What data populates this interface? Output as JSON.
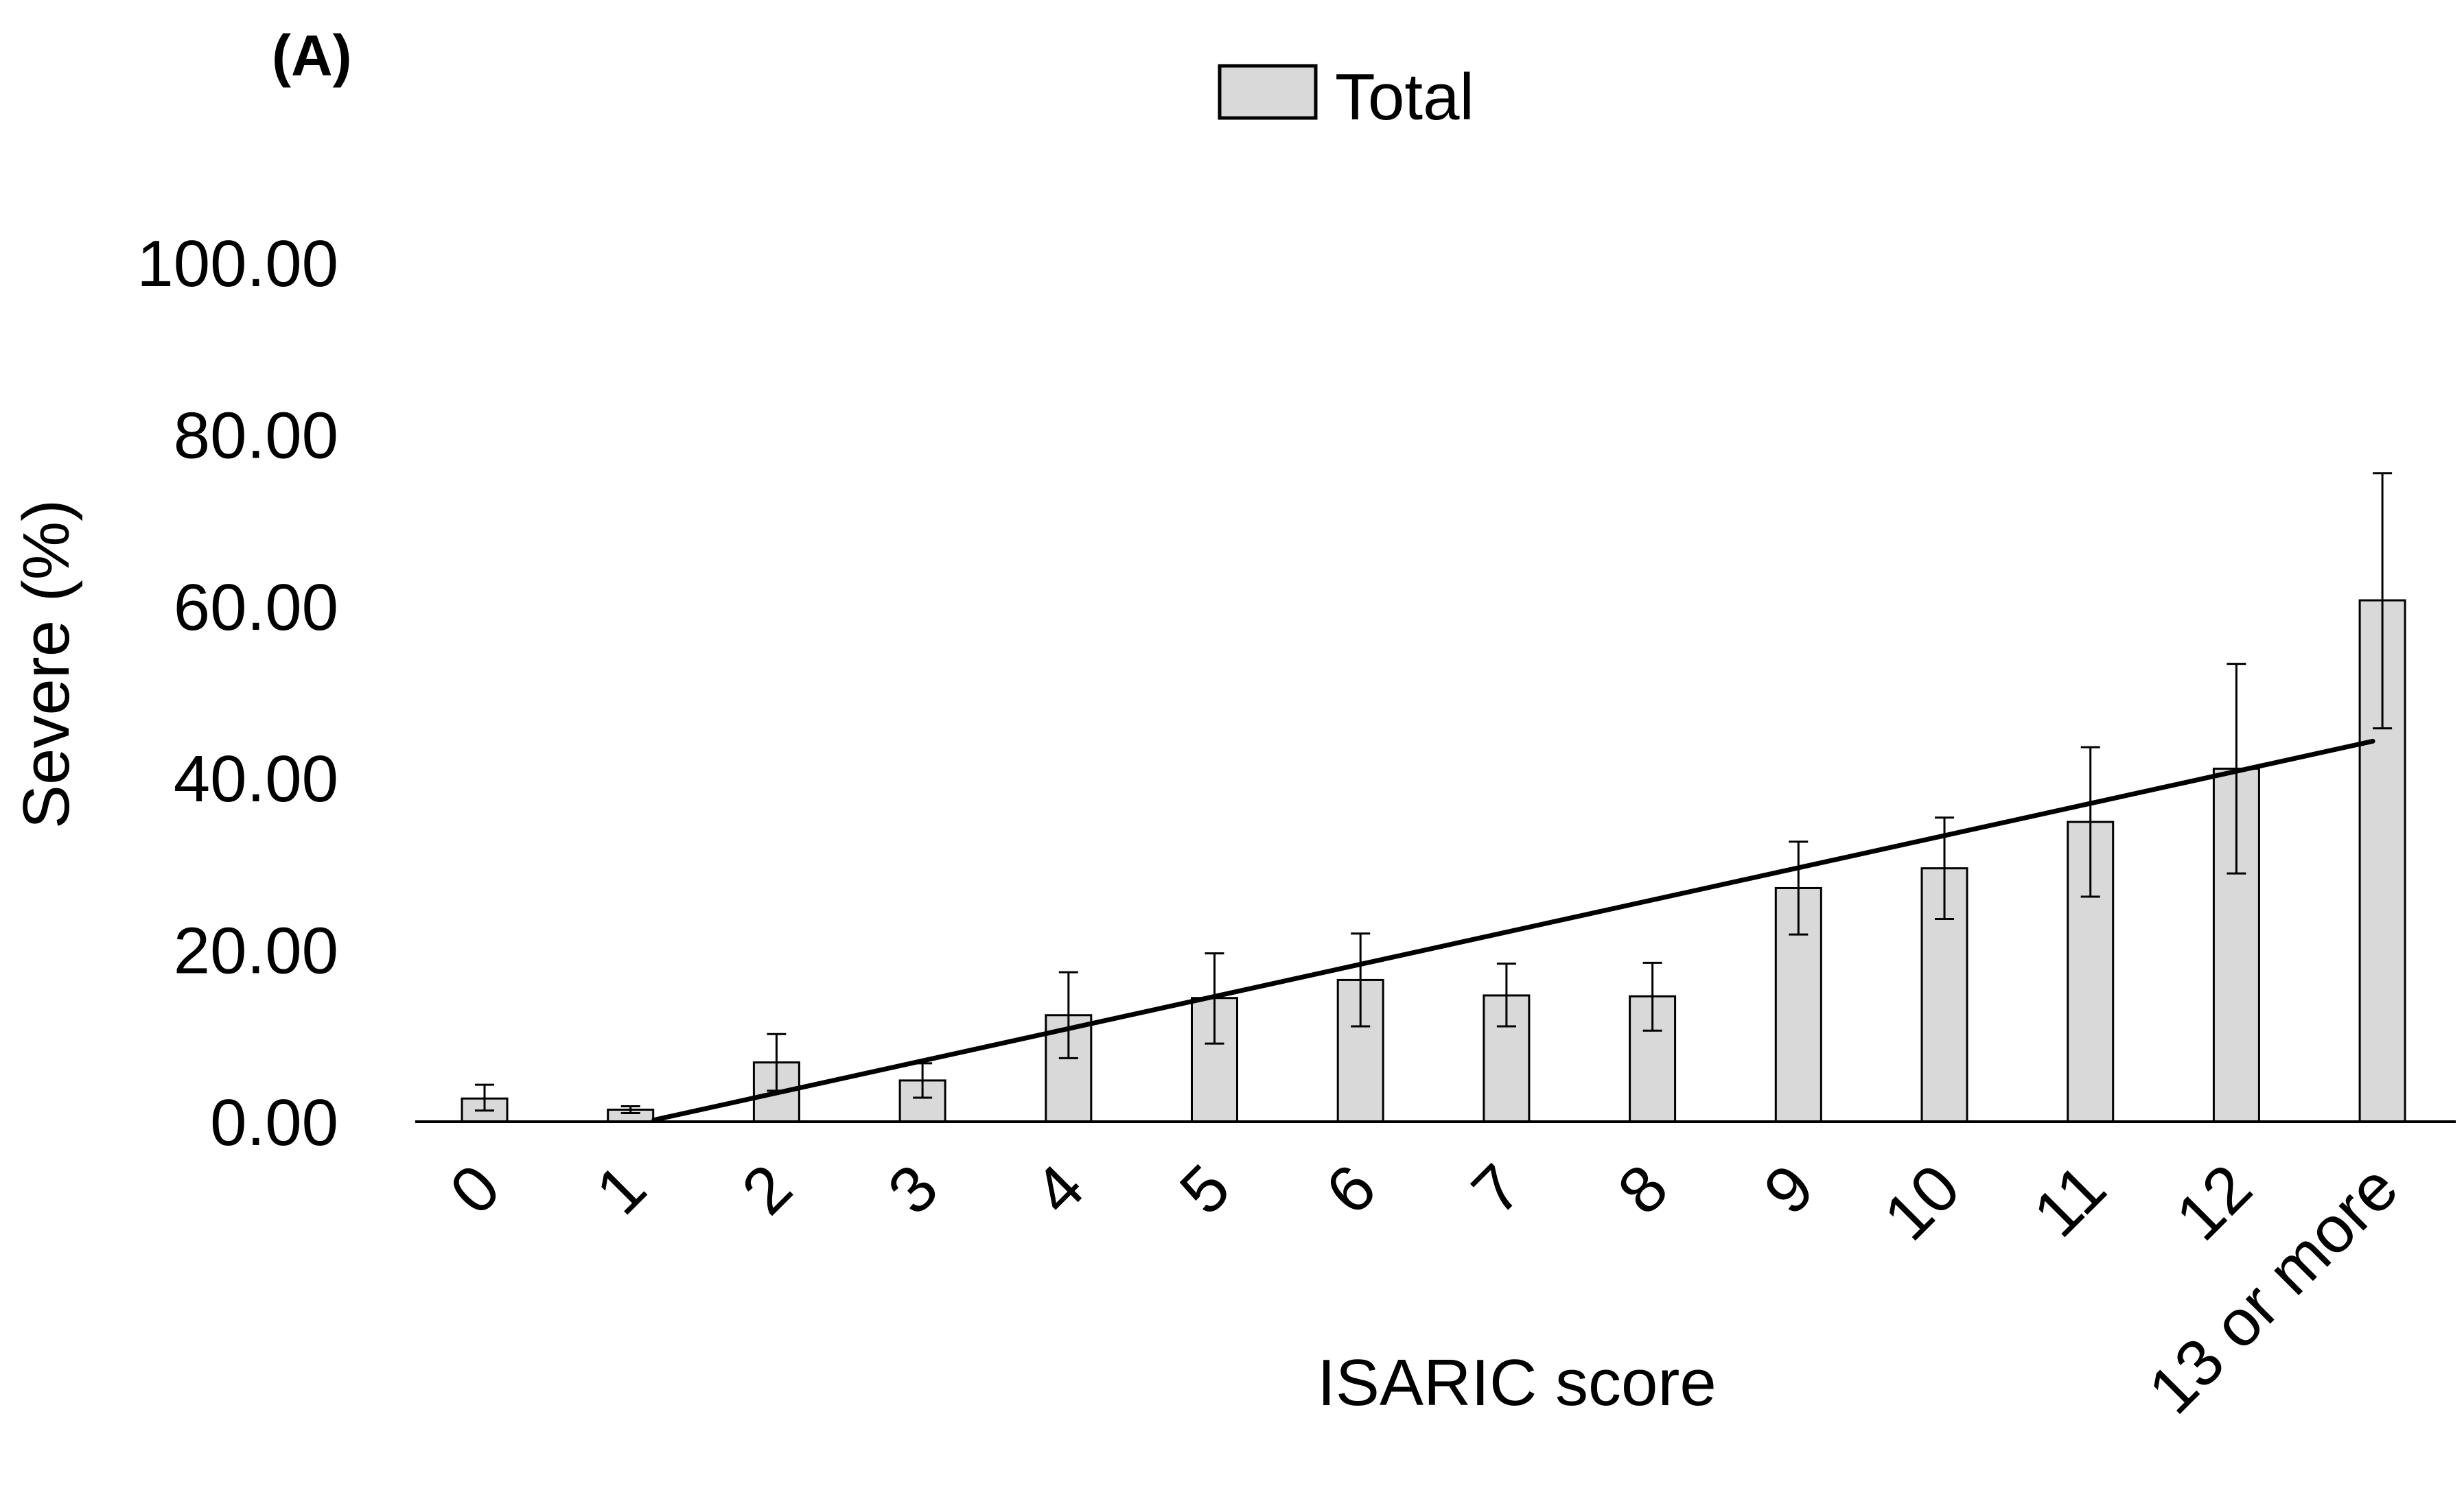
{
  "panel_label": "(A)",
  "legend": {
    "label": "Total",
    "swatch_color": "#d9d9d9",
    "placement": "top-center"
  },
  "colors": {
    "bar_fill": "#d9d9d9",
    "bar_stroke": "#000000",
    "trendline": "#000000",
    "error_bar": "#000000"
  },
  "chart_data": {
    "type": "bar",
    "title": "",
    "xlabel": "ISARIC score",
    "ylabel": "Severe (%)",
    "ylim": [
      0,
      100
    ],
    "y_ticks": [
      "0.00",
      "20.00",
      "40.00",
      "60.00",
      "80.00",
      "100.00"
    ],
    "grid": false,
    "categories": [
      "0",
      "1",
      "2",
      "3",
      "4",
      "5",
      "6",
      "7",
      "8",
      "9",
      "10",
      "11",
      "12",
      "13 or more"
    ],
    "series": [
      {
        "name": "Total",
        "values": [
          2.7,
          1.4,
          6.9,
          4.8,
          12.4,
          14.4,
          16.5,
          14.7,
          14.6,
          27.2,
          29.5,
          34.9,
          41.1,
          60.7
        ],
        "error_low": [
          1.3,
          1.0,
          3.6,
          2.8,
          7.4,
          9.1,
          11.1,
          11.1,
          10.6,
          21.8,
          23.6,
          26.2,
          28.9,
          45.8
        ],
        "error_high": [
          4.3,
          1.8,
          10.2,
          6.8,
          17.4,
          19.6,
          21.9,
          18.4,
          18.5,
          32.6,
          35.4,
          43.6,
          53.3,
          75.5
        ]
      }
    ],
    "trendline": {
      "type": "linear",
      "from_category": "1",
      "to_category": "13 or more",
      "start_value": 0.2,
      "end_value": 44.3
    }
  }
}
